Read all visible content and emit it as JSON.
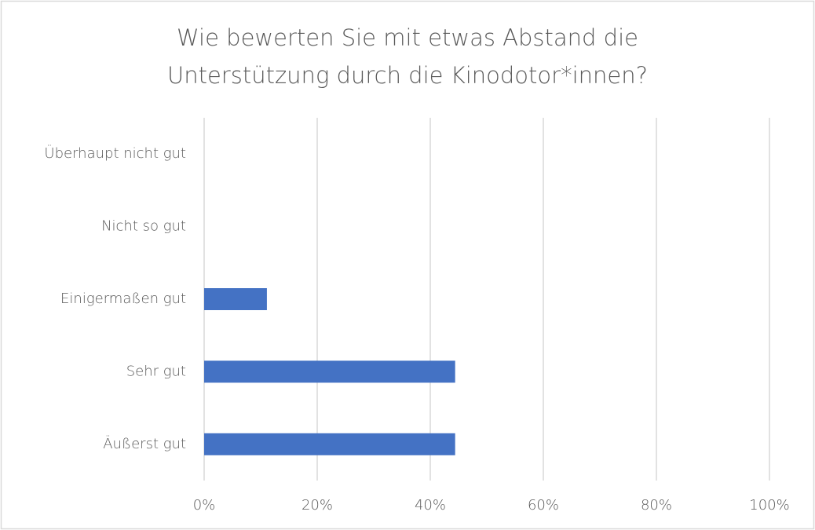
{
  "chart_data": {
    "type": "barh",
    "title": [
      "Wie bewerten Sie mit etwas Abstand die",
      "Unterstützung durch die Kinodotor*innen?"
    ],
    "categories": [
      "Überhaupt nicht gut",
      "Nicht so gut",
      "Einigermaßen gut",
      "Sehr gut",
      "Äußerst gut"
    ],
    "values": [
      0,
      0,
      11.1,
      44.4,
      44.4
    ],
    "color": "#4472c4",
    "xlim": [
      0,
      100
    ],
    "xticks": [
      {
        "value": 0,
        "label": "0%"
      },
      {
        "value": 20,
        "label": "20%"
      },
      {
        "value": 40,
        "label": "40%"
      },
      {
        "value": 60,
        "label": "60%"
      },
      {
        "value": 80,
        "label": "80%"
      },
      {
        "value": 100,
        "label": "100%"
      }
    ],
    "grid": true
  }
}
